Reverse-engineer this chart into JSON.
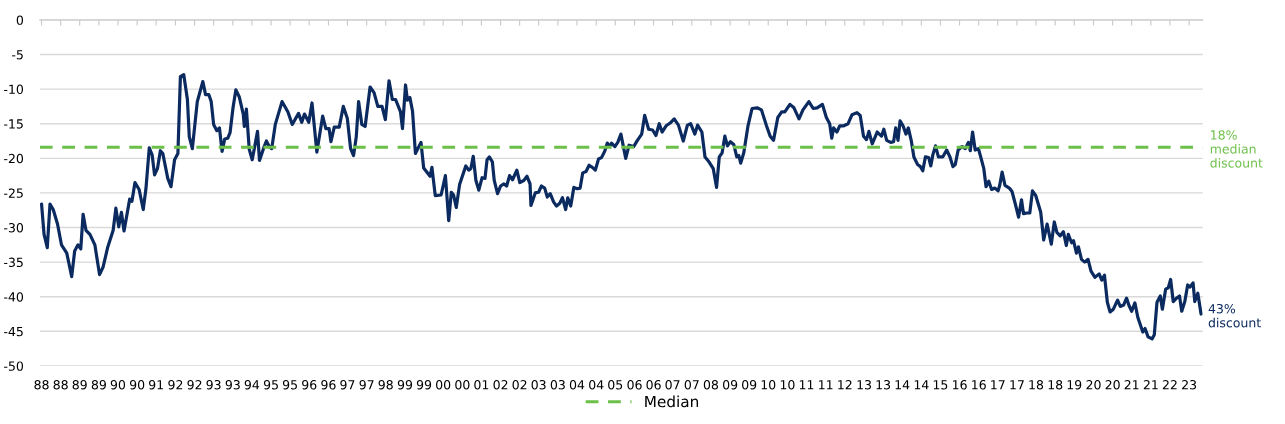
{
  "chart_data": {
    "type": "line",
    "xlim": [
      "1987-12-13",
      "2023-06-02"
    ],
    "ylim": [
      -50,
      0
    ],
    "xticks": [
      {
        "value": "1988-01",
        "label": "88"
      },
      {
        "value": "1988-08",
        "label": "88"
      },
      {
        "value": "1989-03",
        "label": "89"
      },
      {
        "value": "1989-10",
        "label": "89"
      },
      {
        "value": "1990-05",
        "label": "90"
      },
      {
        "value": "1990-12",
        "label": "90"
      },
      {
        "value": "1991-07",
        "label": "91"
      },
      {
        "value": "1992-02",
        "label": "92"
      },
      {
        "value": "1992-09",
        "label": "92"
      },
      {
        "value": "1993-04",
        "label": "93"
      },
      {
        "value": "1993-11",
        "label": "93"
      },
      {
        "value": "1994-06",
        "label": "94"
      },
      {
        "value": "1995-01",
        "label": "95"
      },
      {
        "value": "1995-08",
        "label": "95"
      },
      {
        "value": "1996-03",
        "label": "96"
      },
      {
        "value": "1996-10",
        "label": "96"
      },
      {
        "value": "1997-05",
        "label": "97"
      },
      {
        "value": "1997-12",
        "label": "97"
      },
      {
        "value": "1998-07",
        "label": "98"
      },
      {
        "value": "1999-02",
        "label": "99"
      },
      {
        "value": "1999-09",
        "label": "99"
      },
      {
        "value": "2000-04",
        "label": "00"
      },
      {
        "value": "2000-11",
        "label": "00"
      },
      {
        "value": "2001-06",
        "label": "01"
      },
      {
        "value": "2002-01",
        "label": "02"
      },
      {
        "value": "2002-08",
        "label": "02"
      },
      {
        "value": "2003-03",
        "label": "03"
      },
      {
        "value": "2003-10",
        "label": "03"
      },
      {
        "value": "2004-05",
        "label": "04"
      },
      {
        "value": "2004-12",
        "label": "04"
      },
      {
        "value": "2005-07",
        "label": "05"
      },
      {
        "value": "2006-02",
        "label": "06"
      },
      {
        "value": "2006-09",
        "label": "06"
      },
      {
        "value": "2007-04",
        "label": "07"
      },
      {
        "value": "2007-11",
        "label": "07"
      },
      {
        "value": "2008-06",
        "label": "08"
      },
      {
        "value": "2009-01",
        "label": "09"
      },
      {
        "value": "2009-08",
        "label": "09"
      },
      {
        "value": "2010-03",
        "label": "10"
      },
      {
        "value": "2010-10",
        "label": "10"
      },
      {
        "value": "2011-05",
        "label": "11"
      },
      {
        "value": "2011-12",
        "label": "11"
      },
      {
        "value": "2012-07",
        "label": "12"
      },
      {
        "value": "2013-02",
        "label": "13"
      },
      {
        "value": "2013-09",
        "label": "13"
      },
      {
        "value": "2014-04",
        "label": "14"
      },
      {
        "value": "2014-11",
        "label": "14"
      },
      {
        "value": "2015-06",
        "label": "15"
      },
      {
        "value": "2016-01",
        "label": "16"
      },
      {
        "value": "2016-08",
        "label": "16"
      },
      {
        "value": "2017-03",
        "label": "17"
      },
      {
        "value": "2017-10",
        "label": "17"
      },
      {
        "value": "2018-05",
        "label": "18"
      },
      {
        "value": "2018-12",
        "label": "18"
      },
      {
        "value": "2019-07",
        "label": "19"
      },
      {
        "value": "2020-02",
        "label": "20"
      },
      {
        "value": "2020-09",
        "label": "20"
      },
      {
        "value": "2021-04",
        "label": "21"
      },
      {
        "value": "2021-11",
        "label": "21"
      },
      {
        "value": "2022-06",
        "label": "22"
      },
      {
        "value": "2023-01",
        "label": "23"
      }
    ],
    "yticks": [
      -50,
      -45,
      -40,
      -35,
      -30,
      -25,
      -20,
      -15,
      -10,
      -5,
      0
    ],
    "grid": "y",
    "legend": "bottom",
    "line_style": "solid",
    "series": [
      {
        "color": "#0b2a5f",
        "x": [
          "1988-01-01",
          "1988-01-29",
          "1988-03-05",
          "1988-04-04",
          "1988-05-10",
          "1988-06-27",
          "1988-08-10",
          "1988-10-08",
          "1988-12-02",
          "1989-01-04",
          "1989-02-10",
          "1989-03-13",
          "1989-04-08",
          "1989-05-10",
          "1989-06-23",
          "1989-08-17",
          "1989-10-08",
          "1989-11-17",
          "1990-01-08",
          "1990-03-09",
          "1990-04-08",
          "1990-05-10",
          "1990-06-09",
          "1990-07-08",
          "1990-09-09",
          "1990-10-04",
          "1990-11-07",
          "1990-12-23",
          "1991-02-07",
          "1991-03-09",
          "1991-04-15",
          "1991-05-17",
          "1991-06-13",
          "1991-07-15",
          "1991-08-17",
          "1991-09-13",
          "1991-11-07",
          "1991-12-13",
          "1992-01-22",
          "1992-02-28",
          "1992-03-27",
          "1992-05-03",
          "1992-06-13",
          "1992-07-04",
          "1992-08-07",
          "1992-10-01",
          "1992-12-02",
          "1993-01-01",
          "1993-02-07",
          "1993-03-05",
          "1993-04-01",
          "1993-05-07",
          "1993-06-05",
          "1993-07-04",
          "1993-08-03",
          "1993-09-05",
          "1993-10-01",
          "1993-11-03",
          "1993-12-05",
          "1994-01-11",
          "1994-02-25",
          "1994-03-09",
          "1994-04-01",
          "1994-05-03",
          "1994-06-05",
          "1994-08-03",
          "1994-08-25",
          "1994-10-11",
          "1994-11-10",
          "1994-12-16",
          "1995-01-08",
          "1995-02-17",
          "1995-05-03",
          "1995-07-08",
          "1995-08-25",
          "1995-11-03",
          "1995-12-09",
          "1996-01-08",
          "1996-02-25",
          "1996-04-01",
          "1996-05-25",
          "1996-07-29",
          "1996-09-02",
          "1996-10-08",
          "1996-10-29",
          "1996-12-05",
          "1997-01-29",
          "1997-03-16",
          "1997-04-29",
          "1997-06-05",
          "1997-07-08",
          "1997-08-07",
          "1997-09-02",
          "1997-10-08",
          "1997-11-14",
          "1998-01-08",
          "1998-02-21",
          "1998-04-04",
          "1998-05-21",
          "1998-06-27",
          "1998-08-07",
          "1998-09-13",
          "1998-10-19",
          "1998-12-13",
          "1999-01-04",
          "1999-02-07",
          "1999-02-28",
          "1999-03-27",
          "1999-04-26",
          "1999-05-28",
          "1999-07-29",
          "1999-08-28",
          "1999-11-07",
          "1999-11-28",
          "2000-01-04",
          "2000-03-09",
          "2000-04-26",
          "2000-06-02",
          "2000-07-01",
          "2000-07-26",
          "2000-08-25",
          "2000-10-01",
          "2000-12-09",
          "2001-01-11",
          "2001-02-03",
          "2001-03-02",
          "2001-04-01",
          "2001-05-03",
          "2001-06-09",
          "2001-07-11",
          "2001-08-03",
          "2001-08-28",
          "2001-10-01",
          "2001-10-22",
          "2001-11-28",
          "2002-01-01",
          "2002-02-07",
          "2002-03-09",
          "2002-04-11",
          "2002-05-14",
          "2002-07-01",
          "2002-08-03",
          "2002-09-16",
          "2002-10-22",
          "2002-11-25",
          "2002-12-05",
          "2003-01-22",
          "2003-02-28",
          "2003-04-01",
          "2003-05-07",
          "2003-06-05",
          "2003-07-08",
          "2003-08-14",
          "2003-09-16",
          "2003-10-22",
          "2003-11-21",
          "2003-12-27",
          "2004-01-19",
          "2004-02-21",
          "2004-03-27",
          "2004-05-03",
          "2004-06-05",
          "2004-07-04",
          "2004-08-10",
          "2004-09-13",
          "2004-10-19",
          "2004-11-21",
          "2004-12-27",
          "2005-01-29",
          "2005-03-05",
          "2005-04-04",
          "2005-04-29",
          "2005-05-21",
          "2005-06-27",
          "2005-07-29",
          "2005-09-02",
          "2005-10-26",
          "2005-12-02",
          "2006-01-22",
          "2006-03-05",
          "2006-04-22",
          "2006-05-25",
          "2006-07-08",
          "2006-08-21",
          "2006-09-27",
          "2006-11-03",
          "2006-12-05",
          "2007-01-19",
          "2007-03-05",
          "2007-04-19",
          "2007-06-05",
          "2007-07-29",
          "2007-09-13",
          "2007-10-19",
          "2007-12-05",
          "2008-01-04",
          "2008-02-21",
          "2008-03-27",
          "2008-05-10",
          "2008-06-27",
          "2008-08-03",
          "2008-09-02",
          "2008-10-04",
          "2008-11-03",
          "2008-12-02",
          "2009-01-04",
          "2009-02-10",
          "2009-03-16",
          "2009-04-08",
          "2009-04-29",
          "2009-06-02",
          "2009-07-19",
          "2009-09-02",
          "2009-10-29",
          "2009-12-16",
          "2010-02-10",
          "2010-03-23",
          "2010-04-29",
          "2010-06-16",
          "2010-07-29",
          "2010-09-02",
          "2010-10-29",
          "2010-12-13",
          "2011-02-07",
          "2011-03-23",
          "2011-05-28",
          "2011-07-15",
          "2011-08-28",
          "2011-10-26",
          "2011-12-09",
          "2012-01-15",
          "2012-02-07",
          "2012-02-28",
          "2012-04-04",
          "2012-05-07",
          "2012-06-20",
          "2012-08-07",
          "2012-09-20",
          "2012-11-14",
          "2012-12-20",
          "2013-01-26",
          "2013-02-28",
          "2013-03-27",
          "2013-05-03",
          "2013-06-27",
          "2013-08-14",
          "2013-09-09",
          "2013-10-11",
          "2013-11-25",
          "2013-12-27",
          "2014-01-19",
          "2014-02-14",
          "2014-03-09",
          "2014-04-11",
          "2014-05-14",
          "2014-06-09",
          "2014-07-11",
          "2014-08-10",
          "2014-09-20",
          "2014-10-22",
          "2014-11-17",
          "2014-12-16",
          "2015-01-22",
          "2015-02-14",
          "2015-03-09",
          "2015-04-08",
          "2015-05-10",
          "2015-06-27",
          "2015-08-10",
          "2015-09-16",
          "2015-10-19",
          "2015-11-14",
          "2015-12-16",
          "2016-01-29",
          "2016-03-05",
          "2016-04-08",
          "2016-04-29",
          "2016-05-25",
          "2016-06-23",
          "2016-07-29",
          "2016-09-05",
          "2016-09-27",
          "2016-10-22",
          "2016-11-21",
          "2016-12-23",
          "2017-01-29",
          "2017-03-05",
          "2017-03-23",
          "2017-04-19",
          "2017-05-21",
          "2017-07-08",
          "2017-08-07",
          "2017-09-13",
          "2017-10-19",
          "2017-11-21",
          "2017-12-13",
          "2018-01-19",
          "2018-02-21",
          "2018-03-23",
          "2018-04-29",
          "2018-06-23",
          "2018-07-26",
          "2018-09-02",
          "2018-10-19",
          "2018-11-21",
          "2018-12-20",
          "2019-01-26",
          "2019-03-02",
          "2019-04-04",
          "2019-04-26",
          "2019-06-02",
          "2019-06-23",
          "2019-07-26",
          "2019-08-17",
          "2019-09-20",
          "2019-10-26",
          "2019-12-02",
          "2020-01-04",
          "2020-02-17",
          "2020-04-04",
          "2020-05-03",
          "2020-06-02",
          "2020-07-04",
          "2020-08-03",
          "2020-09-09",
          "2020-10-26",
          "2020-11-25",
          "2021-01-01",
          "2021-02-03",
          "2021-02-28",
          "2021-04-01",
          "2021-05-07",
          "2021-06-09",
          "2021-08-03",
          "2021-08-28",
          "2021-10-01",
          "2021-11-14",
          "2021-12-09",
          "2022-01-08",
          "2022-02-14",
          "2022-03-09",
          "2022-04-15",
          "2022-05-14",
          "2022-06-09",
          "2022-07-08",
          "2022-08-14",
          "2022-09-16",
          "2022-10-11",
          "2022-11-14",
          "2022-12-16",
          "2023-01-11",
          "2023-02-14",
          "2023-03-05",
          "2023-04-08",
          "2023-05-14"
        ],
        "values": [
          -26.6,
          -31,
          -32.9,
          -26.6,
          -27.4,
          -29.5,
          -32.5,
          -33.7,
          -37.1,
          -33.4,
          -32.5,
          -33.1,
          -28.1,
          -30.4,
          -31,
          -32.5,
          -36.8,
          -35.7,
          -32.8,
          -30.4,
          -27.2,
          -29.9,
          -27.8,
          -30.5,
          -25.9,
          -26.2,
          -23.5,
          -24.5,
          -27.4,
          -24.4,
          -18.5,
          -19.5,
          -22.4,
          -21.5,
          -18.9,
          -19.3,
          -22.9,
          -24.1,
          -20.2,
          -19.3,
          -8.2,
          -7.9,
          -11.5,
          -16.9,
          -18.6,
          -11.8,
          -8.9,
          -10.8,
          -10.8,
          -11.8,
          -15.1,
          -16,
          -15.6,
          -19,
          -17.2,
          -17.1,
          -16.3,
          -12.7,
          -10.1,
          -11.1,
          -13.6,
          -15.4,
          -12.9,
          -18.7,
          -20.2,
          -16.1,
          -20.3,
          -18.5,
          -17.5,
          -18.4,
          -18.6,
          -15.1,
          -11.8,
          -13.3,
          -15.1,
          -13.5,
          -14.8,
          -13.6,
          -14.8,
          -12,
          -19.1,
          -13.9,
          -15.7,
          -15.7,
          -17.6,
          -15.5,
          -15.5,
          -12.5,
          -14.2,
          -18.6,
          -19.6,
          -16.9,
          -11.8,
          -15.1,
          -15.4,
          -9.7,
          -10.5,
          -12.5,
          -12.5,
          -14.4,
          -8.8,
          -11.5,
          -11.5,
          -13.3,
          -15.7,
          -9.4,
          -11.6,
          -11.2,
          -13.2,
          -19.3,
          -17.7,
          -21.4,
          -22.6,
          -21.3,
          -25.4,
          -25.3,
          -22.5,
          -29,
          -24.9,
          -25.3,
          -27.1,
          -23.8,
          -21.1,
          -21.7,
          -21.5,
          -19.7,
          -23.2,
          -24.6,
          -22.8,
          -22.9,
          -20.2,
          -19.8,
          -20.5,
          -23.2,
          -25.1,
          -24,
          -23.7,
          -24,
          -22.5,
          -23.1,
          -21.7,
          -23.5,
          -23.2,
          -22.6,
          -23.7,
          -26.8,
          -25,
          -24.9,
          -24,
          -24.3,
          -25.6,
          -25.1,
          -26.3,
          -26.9,
          -26.5,
          -25.7,
          -27.4,
          -25.7,
          -26.9,
          -24.2,
          -24.4,
          -24.3,
          -22.1,
          -21.9,
          -21,
          -21.3,
          -21.7,
          -20.1,
          -19.9,
          -19,
          -17.8,
          -18.3,
          -17.8,
          -18.3,
          -17.7,
          -16.5,
          -20,
          -18.1,
          -18.3,
          -17.4,
          -16.5,
          -13.8,
          -15.8,
          -15.9,
          -16.7,
          -15,
          -16.2,
          -15.3,
          -14.9,
          -14.3,
          -15.2,
          -17.5,
          -15.2,
          -15,
          -16.5,
          -15.2,
          -16.2,
          -19.8,
          -20.5,
          -21.5,
          -24.2,
          -19.8,
          -19.2,
          -16.8,
          -18.2,
          -17.6,
          -18,
          -19.8,
          -19.6,
          -20.7,
          -19.2,
          -15.3,
          -12.8,
          -12.7,
          -13,
          -15.3,
          -16.8,
          -17.4,
          -14.1,
          -13.3,
          -13.3,
          -12.2,
          -12.7,
          -14.3,
          -13,
          -11.8,
          -12.8,
          -12.7,
          -12.2,
          -14.1,
          -15,
          -17.1,
          -15.6,
          -16.2,
          -15.3,
          -15.3,
          -15,
          -13.7,
          -13.4,
          -13.8,
          -16.8,
          -17.3,
          -16.1,
          -17.9,
          -16.2,
          -16.8,
          -15.8,
          -17.4,
          -17.7,
          -17.6,
          -15.6,
          -17.4,
          -14.6,
          -15.3,
          -16.5,
          -15.6,
          -17.4,
          -19.8,
          -20.9,
          -21.2,
          -21.8,
          -19.8,
          -19.9,
          -21.1,
          -19.5,
          -18.2,
          -19.8,
          -19.8,
          -18.8,
          -19.8,
          -21.2,
          -20.9,
          -18.8,
          -18.3,
          -18.6,
          -17.7,
          -18.9,
          -16.2,
          -18.8,
          -18.6,
          -20.4,
          -21.5,
          -24.1,
          -23.3,
          -24.5,
          -24.3,
          -24.7,
          -23.9,
          -22,
          -23.9,
          -24.3,
          -24.8,
          -26.6,
          -28.5,
          -26,
          -28,
          -27.9,
          -27.9,
          -24.7,
          -25.4,
          -27.8,
          -31.8,
          -29.5,
          -32.4,
          -29.2,
          -30.7,
          -31.2,
          -30.6,
          -32.6,
          -31,
          -32.2,
          -31.9,
          -33.7,
          -32.8,
          -34.6,
          -35,
          -34.6,
          -36.3,
          -37.2,
          -36.7,
          -37.6,
          -36.9,
          -40.8,
          -42.2,
          -41.8,
          -40.5,
          -41.4,
          -41.2,
          -40.2,
          -41.2,
          -42.1,
          -40.9,
          -43,
          -45.1,
          -44.6,
          -45.8,
          -46.1,
          -45.5,
          -40.8,
          -39.9,
          -41.8,
          -38.9,
          -38.7,
          -37.5,
          -40.7,
          -40.2,
          -39.9,
          -42.1,
          -40.7,
          -38.3,
          -38.6,
          -38,
          -40.7,
          -39.5,
          -42.5
        ]
      },
      {
        "name": "Median",
        "color": "#6cc04a",
        "line_style": "dashed",
        "x": [
          "1987-12-13",
          "2023-06-02"
        ],
        "values": [
          -18.4,
          -18.4
        ]
      }
    ],
    "annotations": [
      {
        "text": "18%\nmedian\ndiscount",
        "x": "2023-06-02",
        "y": -18.4
      },
      {
        "text": "43%\ndiscount",
        "x": "2023-05-14",
        "y": -42.5
      }
    ]
  }
}
